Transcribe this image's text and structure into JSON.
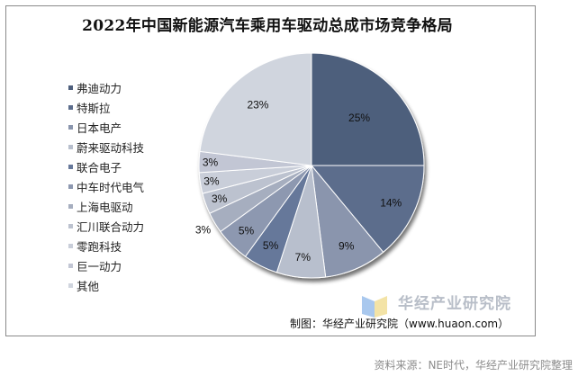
{
  "chart_data": {
    "type": "pie",
    "title": "2022年中国新能源汽车乘用车驱动总成市场竞争格局",
    "start_angle": "12 o'clock, clockwise",
    "series": [
      {
        "name": "弗迪动力",
        "value": 25,
        "label": "25%",
        "color": "#4e5f7c"
      },
      {
        "name": "特斯拉",
        "value": 14,
        "label": "14%",
        "color": "#5c6d8c"
      },
      {
        "name": "日本电产",
        "value": 9,
        "label": "9%",
        "color": "#8a95ad"
      },
      {
        "name": "蔚来驱动科技",
        "value": 7,
        "label": "7%",
        "color": "#b8bfcd"
      },
      {
        "name": "联合电子",
        "value": 5,
        "label": "5%",
        "color": "#66789a"
      },
      {
        "name": "中车时代电气",
        "value": 5,
        "label": "5%",
        "color": "#8d98b0"
      },
      {
        "name": "上海电驱动",
        "value": 3,
        "label": "3%",
        "color": "#a6aebf"
      },
      {
        "name": "汇川联合动力",
        "value": 3,
        "label": "3%",
        "color": "#bcc2cf"
      },
      {
        "name": "零跑科技",
        "value": 3,
        "label": "3%",
        "color": "#c9ced9"
      },
      {
        "name": "巨一动力",
        "value": 3,
        "label": "3%",
        "color": "#c2c6d4"
      },
      {
        "name": "其他",
        "value": 23,
        "label": "23%",
        "color": "#d0d5de"
      }
    ],
    "legend_position": "left"
  },
  "header": {
    "title": "2022年中国新能源汽车乘用车驱动总成市场竞争格局"
  },
  "legend": {
    "items": [
      {
        "label": "弗迪动力",
        "color": "#4e5f7c"
      },
      {
        "label": "特斯拉",
        "color": "#5c6d8c"
      },
      {
        "label": "日本电产",
        "color": "#8a95ad"
      },
      {
        "label": "蔚来驱动科技",
        "color": "#b8bfcd"
      },
      {
        "label": "联合电子",
        "color": "#66789a"
      },
      {
        "label": "中车时代电气",
        "color": "#8d98b0"
      },
      {
        "label": "上海电驱动",
        "color": "#a6aebf"
      },
      {
        "label": "汇川联合动力",
        "color": "#bcc2cf"
      },
      {
        "label": "零跑科技",
        "color": "#c9ced9"
      },
      {
        "label": "巨一动力",
        "color": "#c2c6d4"
      },
      {
        "label": "其他",
        "color": "#d0d5de"
      }
    ]
  },
  "watermark": {
    "text": "华经产业研究院",
    "url": "www.huaon.com"
  },
  "footer": {
    "credit": "制图：华经产业研究院（www.huaon.com）",
    "source": "资料来源：NE时代，华经产业研究院整理"
  }
}
